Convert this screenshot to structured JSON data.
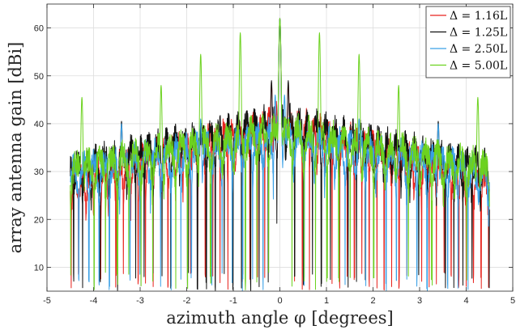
{
  "chart_data": {
    "type": "line",
    "title": "",
    "xlabel": "azimuth angle φ [degrees]",
    "ylabel": "array antenna gain [dBi]",
    "xlim": [
      -5,
      5
    ],
    "ylim": [
      5,
      65
    ],
    "x_ticks": [
      "-5",
      "-4",
      "-3",
      "-2",
      "-1",
      "0",
      "1",
      "2",
      "3",
      "4",
      "5"
    ],
    "y_ticks": [
      "10",
      "20",
      "30",
      "40",
      "50",
      "60"
    ],
    "grid": true,
    "legend_position": "top-right",
    "x_range_plotted": [
      -4.5,
      4.5
    ],
    "series": [
      {
        "name": "Δ = 1.16L",
        "color": "#e8231d",
        "main_lobe": {
          "x": 0,
          "y": 62
        },
        "first_sidelobes": [
          {
            "x": -0.18,
            "y": 48.5
          },
          {
            "x": 0.18,
            "y": 48.5
          }
        ],
        "grating_lobes": [],
        "sidelobe_level_near": 38,
        "sidelobe_level_far": 25,
        "null_floor": 5
      },
      {
        "name": "Δ = 1.25L",
        "color": "#111111",
        "main_lobe": {
          "x": 0,
          "y": 62
        },
        "first_sidelobes": [
          {
            "x": -0.18,
            "y": 49
          },
          {
            "x": 0.18,
            "y": 49
          }
        ],
        "grating_lobes": [
          {
            "x": -3.4,
            "y": 40.5
          },
          {
            "x": 3.4,
            "y": 40.5
          }
        ],
        "sidelobe_level_near": 38,
        "sidelobe_level_far": 28,
        "null_floor": 5
      },
      {
        "name": "Δ = 2.50L",
        "color": "#3aa0e6",
        "main_lobe": {
          "x": 0,
          "y": 62
        },
        "first_sidelobes": [
          {
            "x": -0.1,
            "y": 46
          },
          {
            "x": 0.1,
            "y": 46
          }
        ],
        "grating_lobes": [
          {
            "x": -3.4,
            "y": 40
          },
          {
            "x": -1.7,
            "y": 41
          },
          {
            "x": 1.7,
            "y": 41
          },
          {
            "x": 3.4,
            "y": 40
          }
        ],
        "sidelobe_level_near": 35,
        "sidelobe_level_far": 27,
        "null_floor": 5
      },
      {
        "name": "Δ = 5.00L",
        "color": "#6cd21f",
        "main_lobe": {
          "x": 0,
          "y": 62
        },
        "first_sidelobes": [],
        "grating_lobes": [
          {
            "x": -4.25,
            "y": 45.5
          },
          {
            "x": -2.55,
            "y": 48
          },
          {
            "x": -1.7,
            "y": 54.5
          },
          {
            "x": -0.85,
            "y": 59
          },
          {
            "x": 0.85,
            "y": 59
          },
          {
            "x": 1.7,
            "y": 54.5
          },
          {
            "x": 2.55,
            "y": 48
          },
          {
            "x": 4.25,
            "y": 45.5
          }
        ],
        "sidelobe_level_near": 36,
        "sidelobe_level_far": 28,
        "null_floor": 5
      }
    ]
  }
}
